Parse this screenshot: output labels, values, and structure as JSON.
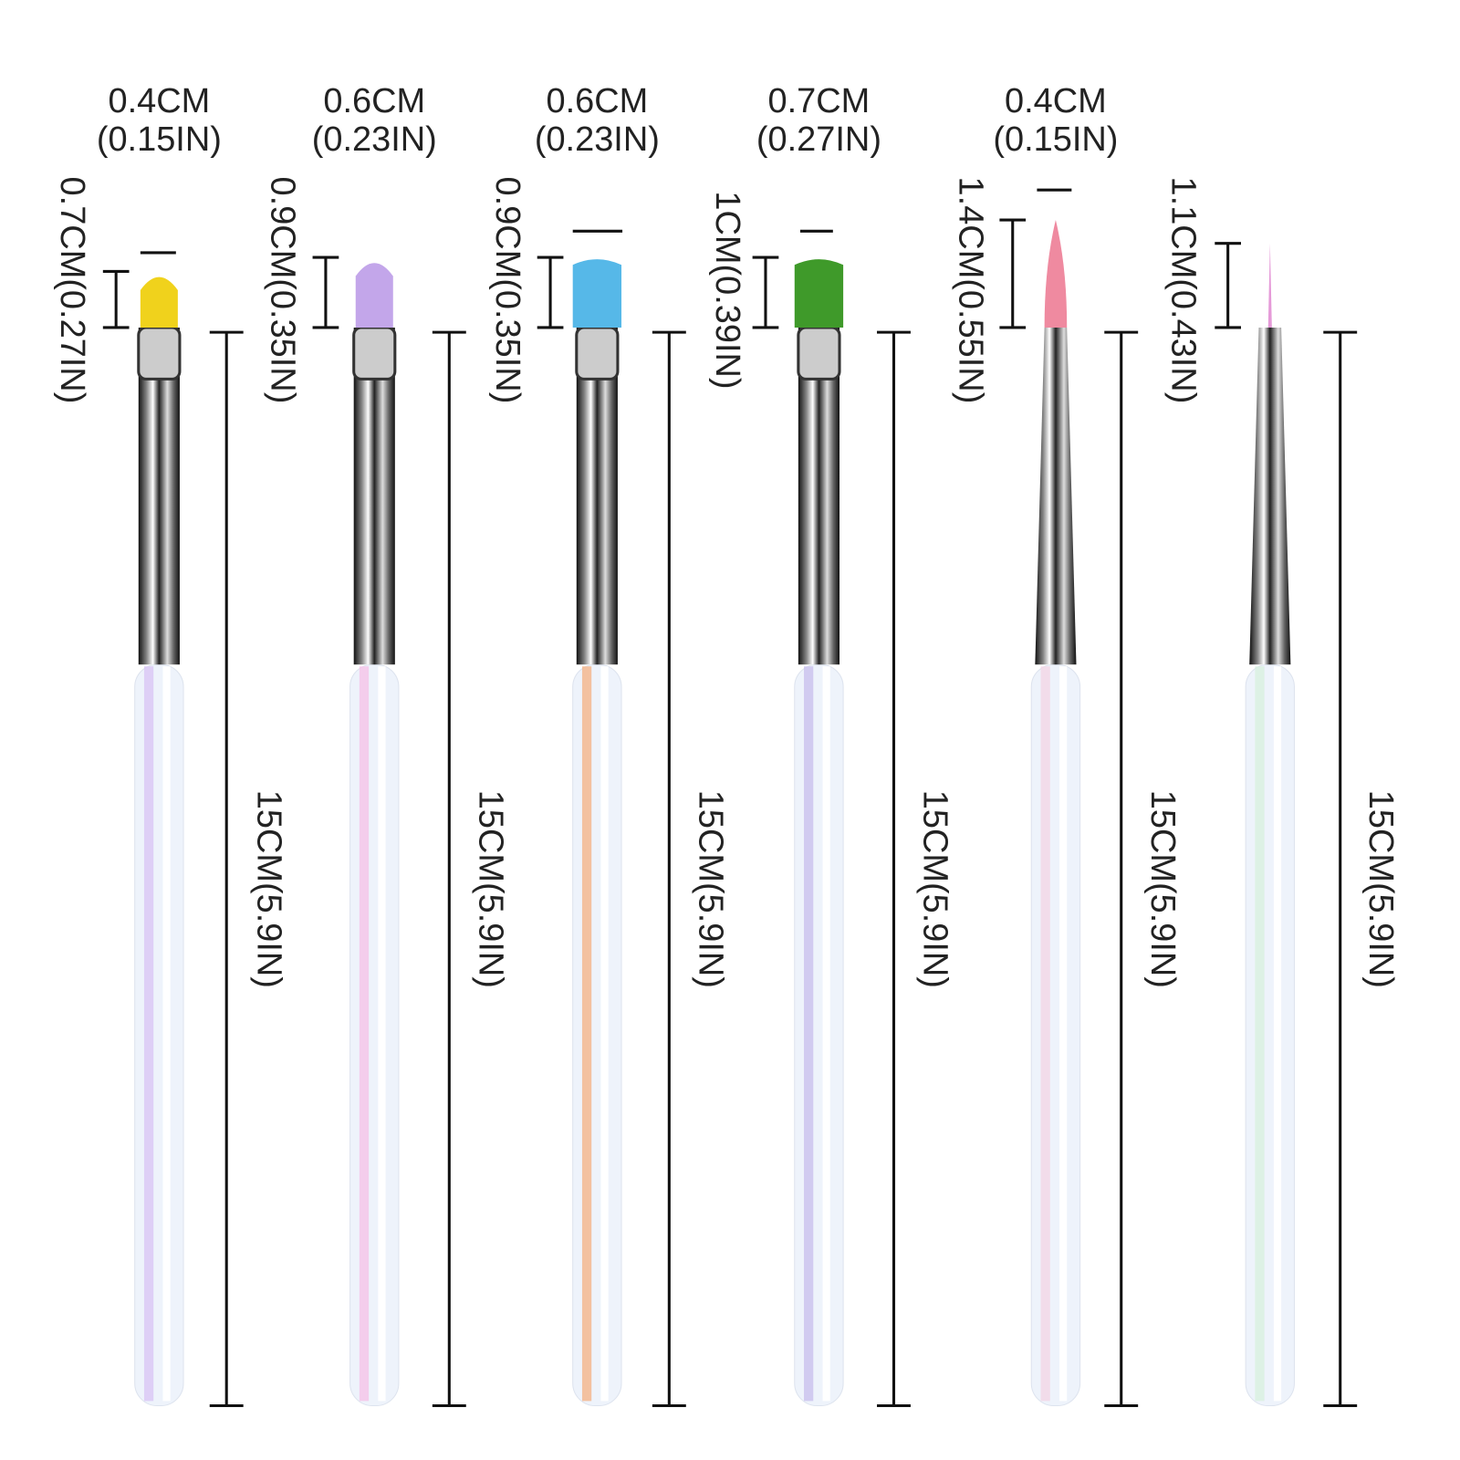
{
  "brushes": [
    {
      "width": "0.4CM\n(0.15IN)",
      "bristle_length": "0.7CM(0.27IN)",
      "total_length": "15CM(5.9IN)"
    },
    {
      "width": "0.6CM\n(0.23IN)",
      "bristle_length": "0.9CM(0.35IN)",
      "total_length": "15CM(5.9IN)"
    },
    {
      "width": "0.6CM\n(0.23IN)",
      "bristle_length": "0.9CM(0.35IN)",
      "total_length": "15CM(5.9IN)"
    },
    {
      "width": "0.7CM\n(0.27IN)",
      "bristle_length": "1CM(0.39IN)",
      "total_length": "15CM(5.9IN)"
    },
    {
      "width": "0.4CM\n(0.15IN)",
      "bristle_length": "1.4CM(0.55IN)",
      "total_length": "15CM(5.9IN)"
    },
    {
      "bristle_length": "1.1CM(0.43IN)",
      "total_length": "15CM(5.9IN)"
    }
  ]
}
